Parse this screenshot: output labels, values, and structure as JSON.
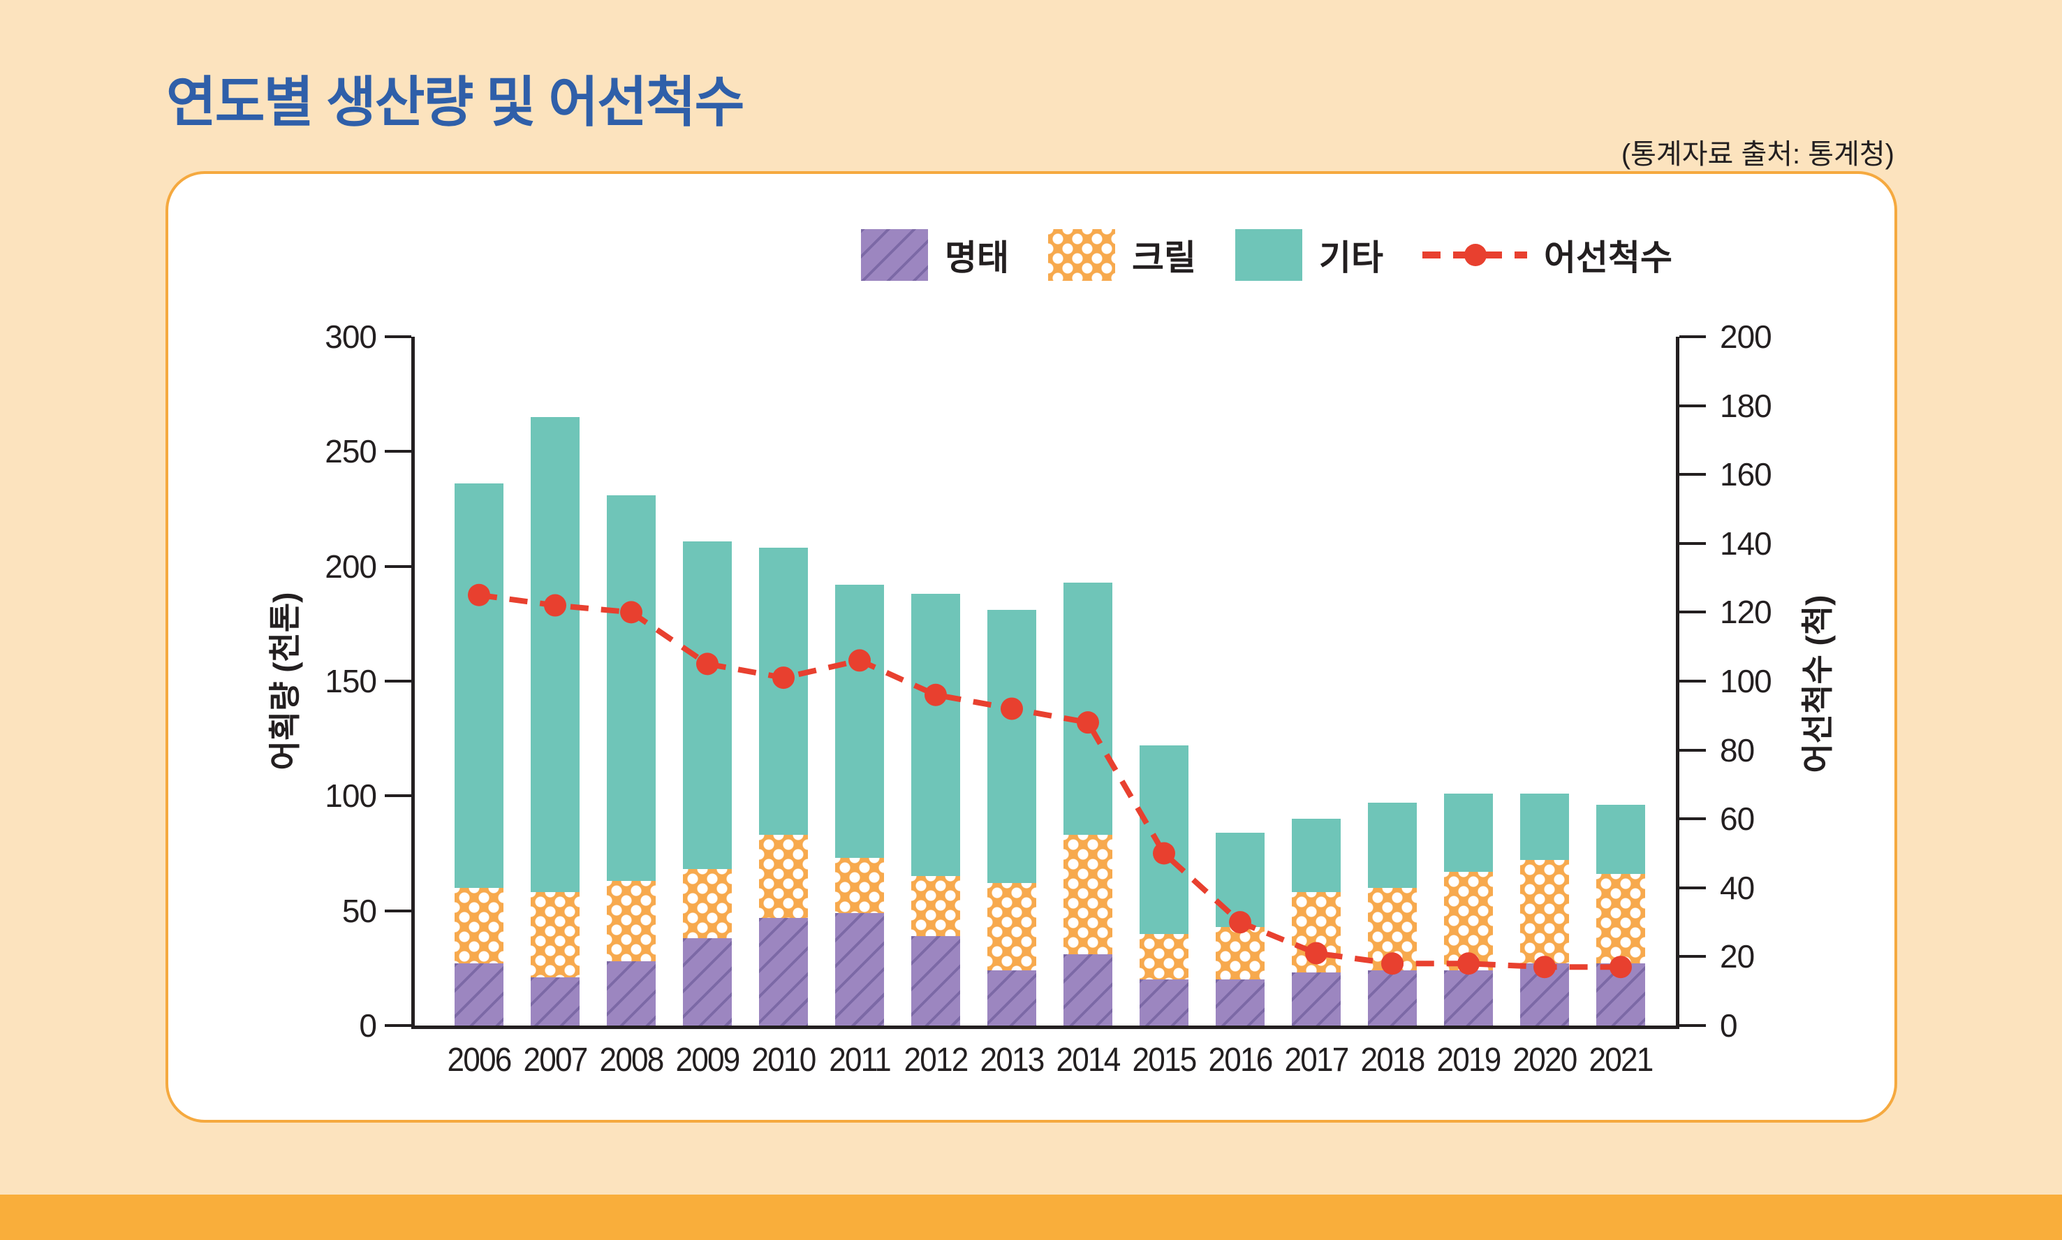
{
  "page": {
    "title": "연도별 생산량 및 어선척수",
    "source_note": "(통계자료 출처: 통계청)"
  },
  "colors": {
    "background": "#FCE3BE",
    "bottom_strip": "#F9AE3B",
    "card_border": "#F5A93F",
    "title_blue": "#2F5FA9",
    "text": "#231F20",
    "pollock_purple": "#9C86C0",
    "pollock_hatch": "#7C69A6",
    "krill_orange": "#F7A94D",
    "krill_dot": "#FFFFFF",
    "other_teal": "#6FC5B8",
    "vessel_red": "#E8402F"
  },
  "chart_data": {
    "type": "bar",
    "stacked": true,
    "grid": false,
    "legend_position": "top-right",
    "categories": [
      "2006",
      "2007",
      "2008",
      "2009",
      "2010",
      "2011",
      "2012",
      "2013",
      "2014",
      "2015",
      "2016",
      "2017",
      "2018",
      "2019",
      "2020",
      "2021"
    ],
    "series": [
      {
        "name": "명태",
        "type": "bar",
        "axis": "left",
        "pattern": "diagonal-hatch",
        "color": "#9C86C0",
        "values": [
          27,
          21,
          28,
          38,
          47,
          49,
          39,
          24,
          31,
          20,
          20,
          23,
          24,
          24,
          27,
          27
        ]
      },
      {
        "name": "크릴",
        "type": "bar",
        "axis": "left",
        "pattern": "polka-dot",
        "color": "#F7A94D",
        "values": [
          33,
          37,
          35,
          30,
          36,
          24,
          26,
          38,
          52,
          20,
          23,
          35,
          36,
          43,
          45,
          39
        ]
      },
      {
        "name": "기타",
        "type": "bar",
        "axis": "left",
        "pattern": "solid",
        "color": "#6FC5B8",
        "values": [
          176,
          207,
          168,
          143,
          125,
          119,
          123,
          119,
          110,
          82,
          41,
          32,
          37,
          34,
          29,
          30
        ]
      },
      {
        "name": "어선척수",
        "type": "line",
        "axis": "right",
        "style": "dashed-with-round-markers",
        "color": "#E8402F",
        "values": [
          125,
          122,
          120,
          105,
          101,
          106,
          96,
          92,
          88,
          50,
          30,
          21,
          18,
          18,
          17,
          17
        ]
      }
    ],
    "stack_totals": [
      236,
      265,
      231,
      211,
      208,
      192,
      188,
      181,
      193,
      122,
      84,
      90,
      97,
      101,
      101,
      96
    ],
    "left_axis": {
      "label": "어획량 (천톤)",
      "min": 0,
      "max": 300,
      "tick_step": 50,
      "ticks": [
        0,
        50,
        100,
        150,
        200,
        250,
        300
      ]
    },
    "right_axis": {
      "label": "어선척수 (척)",
      "min": 0,
      "max": 200,
      "tick_step": 20,
      "ticks": [
        0,
        20,
        40,
        60,
        80,
        100,
        120,
        140,
        160,
        180,
        200
      ]
    }
  }
}
